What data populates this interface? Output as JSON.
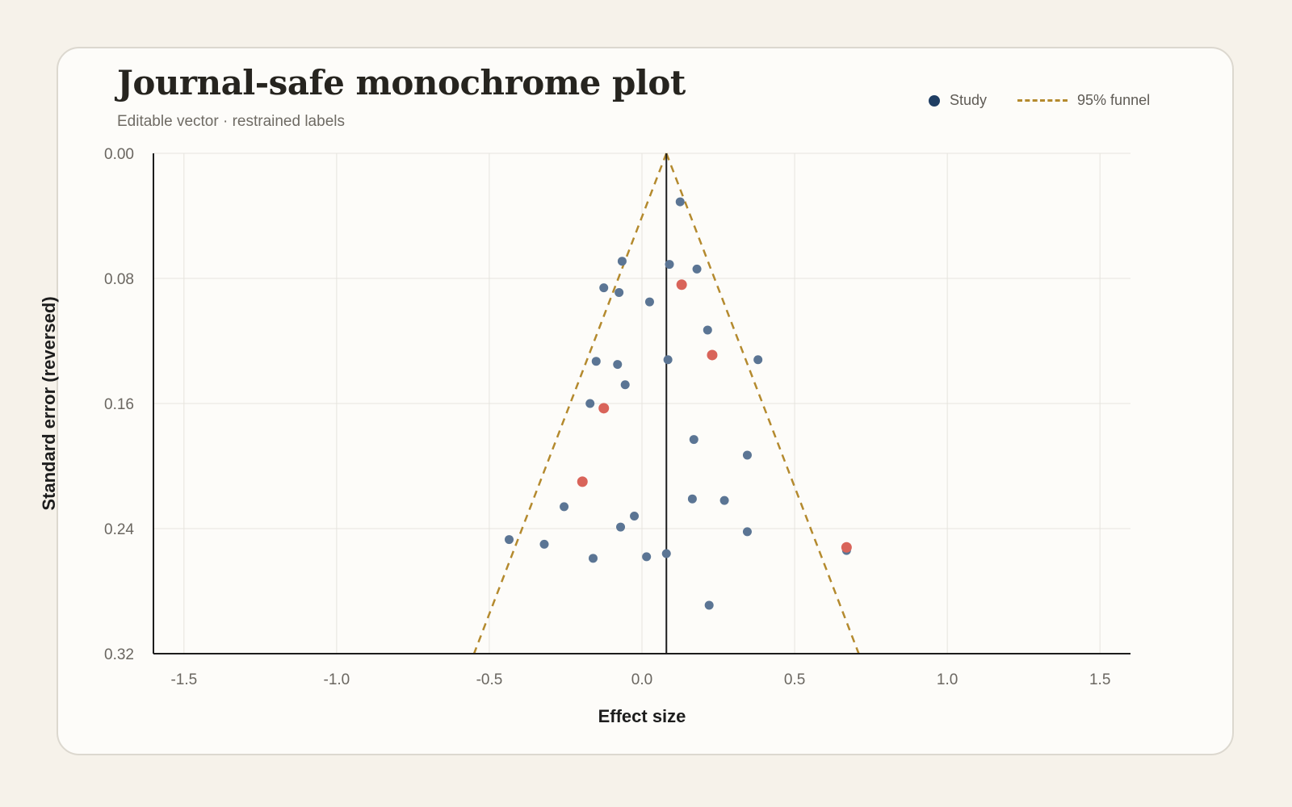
{
  "title": "Journal-safe monochrome plot",
  "subtitle": "Editable vector · restrained labels",
  "legend": {
    "study_label": "Study",
    "funnel_label": "95% funnel"
  },
  "colors": {
    "study": "#5b7594",
    "highlight": "#d9645a",
    "funnel": "#b48a2e",
    "axis": "#1d1d1d",
    "grid": "#e6e4de"
  },
  "chart_data": {
    "type": "scatter",
    "xlabel": "Effect size",
    "ylabel": "Standard error (reversed)",
    "xlim": [
      -1.6,
      1.6
    ],
    "ylim": [
      0,
      0.32
    ],
    "y_reversed": true,
    "x_ticks": [
      -1.5,
      -1.0,
      -0.5,
      0.0,
      0.5,
      1.0,
      1.5
    ],
    "x_tick_labels": [
      "-1.5",
      "-1.0",
      "-0.5",
      "0.0",
      "0.5",
      "1.0",
      "1.5"
    ],
    "y_ticks": [
      0,
      0.08,
      0.16,
      0.24,
      0.32
    ],
    "y_tick_labels": [
      "0.00",
      "0.08",
      "0.16",
      "0.24",
      "0.32"
    ],
    "grid": true,
    "pooled_effect": 0.08,
    "funnel": {
      "apex": [
        0.08,
        0.0
      ],
      "base_left": [
        -0.55,
        0.32
      ],
      "base_right": [
        0.71,
        0.32
      ]
    },
    "studies": [
      {
        "x": 0.125,
        "y": 0.031
      },
      {
        "x": -0.065,
        "y": 0.069
      },
      {
        "x": 0.09,
        "y": 0.071
      },
      {
        "x": 0.18,
        "y": 0.074
      },
      {
        "x": -0.125,
        "y": 0.086
      },
      {
        "x": -0.075,
        "y": 0.089
      },
      {
        "x": 0.025,
        "y": 0.095
      },
      {
        "x": 0.215,
        "y": 0.113
      },
      {
        "x": -0.15,
        "y": 0.133
      },
      {
        "x": -0.08,
        "y": 0.135
      },
      {
        "x": 0.085,
        "y": 0.132
      },
      {
        "x": 0.38,
        "y": 0.132
      },
      {
        "x": -0.055,
        "y": 0.148
      },
      {
        "x": -0.17,
        "y": 0.16
      },
      {
        "x": 0.17,
        "y": 0.183
      },
      {
        "x": 0.345,
        "y": 0.193
      },
      {
        "x": 0.165,
        "y": 0.221
      },
      {
        "x": 0.27,
        "y": 0.222
      },
      {
        "x": -0.255,
        "y": 0.226
      },
      {
        "x": -0.025,
        "y": 0.232
      },
      {
        "x": -0.07,
        "y": 0.239
      },
      {
        "x": 0.345,
        "y": 0.242
      },
      {
        "x": -0.435,
        "y": 0.247
      },
      {
        "x": -0.32,
        "y": 0.25
      },
      {
        "x": 0.08,
        "y": 0.256
      },
      {
        "x": 0.015,
        "y": 0.258
      },
      {
        "x": -0.16,
        "y": 0.259
      },
      {
        "x": 0.67,
        "y": 0.254
      },
      {
        "x": 0.22,
        "y": 0.289
      }
    ],
    "highlighted": [
      {
        "x": 0.13,
        "y": 0.084
      },
      {
        "x": 0.23,
        "y": 0.129
      },
      {
        "x": -0.125,
        "y": 0.163
      },
      {
        "x": -0.195,
        "y": 0.21
      },
      {
        "x": 0.67,
        "y": 0.252
      }
    ]
  }
}
